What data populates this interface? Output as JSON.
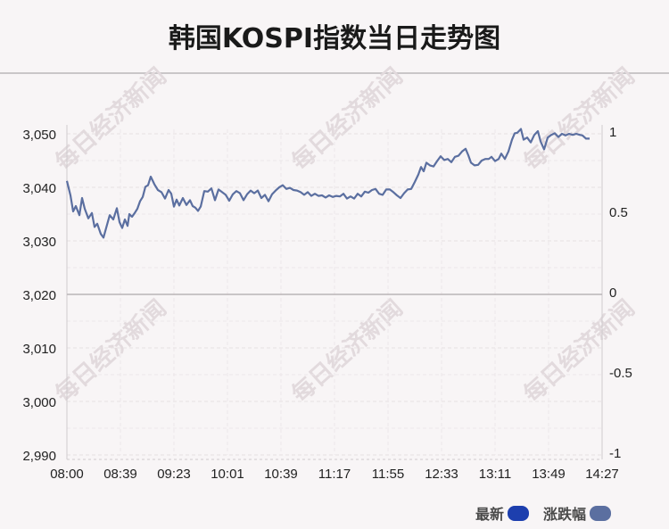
{
  "title": "韩国KOSPI指数当日走势图",
  "watermark_text": "每日经济新闻",
  "legend": {
    "latest_label": "最新",
    "latest_color": "#1d3fae",
    "change_label": "涨跌幅",
    "change_color": "#5b6fa0"
  },
  "chart_data": {
    "type": "line",
    "title": "韩国KOSPI指数当日走势图",
    "x_tick_labels": [
      "08:00",
      "08:39",
      "09:23",
      "10:01",
      "10:39",
      "11:17",
      "11:55",
      "12:33",
      "13:11",
      "13:49",
      "14:27"
    ],
    "y_left_ticks": [
      "3,050",
      "3,040",
      "3,030",
      "3,020",
      "3,010",
      "3,000",
      "2,990"
    ],
    "y_left_range": [
      2990,
      3050
    ],
    "y_right_ticks": [
      "1",
      "0.5",
      "0",
      "-0.5",
      "-1"
    ],
    "y_right_range": [
      -1,
      1
    ],
    "baseline": 3020,
    "grid": true,
    "line_color": "#5b6fa0",
    "series": [
      {
        "name": "最新",
        "points": [
          [
            0,
            3041.2
          ],
          [
            0.2,
            3038.5
          ],
          [
            0.35,
            3035.5
          ],
          [
            0.5,
            3036.5
          ],
          [
            0.7,
            3034.8
          ],
          [
            0.85,
            3038.0
          ],
          [
            1.0,
            3036.0
          ],
          [
            1.2,
            3034.2
          ],
          [
            1.4,
            3035.2
          ],
          [
            1.55,
            3032.6
          ],
          [
            1.7,
            3033.2
          ],
          [
            1.9,
            3031.3
          ],
          [
            2.05,
            3030.6
          ],
          [
            2.2,
            3032.4
          ],
          [
            2.4,
            3034.8
          ],
          [
            2.6,
            3034.0
          ],
          [
            2.8,
            3036.1
          ],
          [
            2.95,
            3033.5
          ],
          [
            3.1,
            3032.4
          ],
          [
            3.25,
            3034.0
          ],
          [
            3.4,
            3032.8
          ],
          [
            3.5,
            3035.0
          ],
          [
            3.65,
            3034.5
          ],
          [
            3.8,
            3035.2
          ],
          [
            3.95,
            3036.0
          ],
          [
            4.1,
            3037.4
          ],
          [
            4.25,
            3038.2
          ],
          [
            4.4,
            3040.1
          ],
          [
            4.55,
            3040.4
          ],
          [
            4.7,
            3042.0
          ],
          [
            4.9,
            3040.6
          ],
          [
            5.1,
            3039.5
          ],
          [
            5.3,
            3039.1
          ],
          [
            5.5,
            3037.9
          ],
          [
            5.7,
            3039.5
          ],
          [
            5.85,
            3038.8
          ],
          [
            6.0,
            3036.4
          ],
          [
            6.15,
            3037.7
          ],
          [
            6.3,
            3036.6
          ],
          [
            6.5,
            3038.0
          ],
          [
            6.7,
            3036.7
          ],
          [
            6.9,
            3037.6
          ],
          [
            7.05,
            3036.5
          ],
          [
            7.2,
            3036.2
          ],
          [
            7.35,
            3035.6
          ],
          [
            7.5,
            3036.4
          ],
          [
            7.7,
            3039.3
          ],
          [
            7.9,
            3039.2
          ],
          [
            8.1,
            3039.8
          ],
          [
            8.3,
            3037.6
          ],
          [
            8.5,
            3039.6
          ],
          [
            8.7,
            3039.1
          ],
          [
            8.9,
            3038.6
          ],
          [
            9.1,
            3037.5
          ],
          [
            9.3,
            3038.7
          ],
          [
            9.5,
            3039.3
          ],
          [
            9.7,
            3038.9
          ],
          [
            9.9,
            3037.6
          ],
          [
            10.1,
            3038.7
          ],
          [
            10.3,
            3039.4
          ],
          [
            10.5,
            3038.9
          ],
          [
            10.7,
            3039.4
          ],
          [
            10.9,
            3038.0
          ],
          [
            11.1,
            3038.6
          ],
          [
            11.3,
            3037.4
          ],
          [
            11.5,
            3038.7
          ],
          [
            11.7,
            3039.4
          ],
          [
            11.9,
            3040.0
          ],
          [
            12.1,
            3040.4
          ],
          [
            12.3,
            3039.7
          ],
          [
            12.5,
            3039.9
          ],
          [
            12.7,
            3039.5
          ],
          [
            12.9,
            3039.4
          ],
          [
            13.1,
            3039.1
          ],
          [
            13.3,
            3038.6
          ],
          [
            13.5,
            3039.1
          ],
          [
            13.7,
            3038.4
          ],
          [
            13.9,
            3038.8
          ],
          [
            14.1,
            3038.4
          ],
          [
            14.3,
            3038.5
          ],
          [
            14.5,
            3038.1
          ],
          [
            14.7,
            3038.5
          ],
          [
            14.9,
            3038.2
          ],
          [
            15.1,
            3038.4
          ],
          [
            15.3,
            3038.3
          ],
          [
            15.5,
            3038.8
          ],
          [
            15.7,
            3037.9
          ],
          [
            15.9,
            3038.3
          ],
          [
            16.1,
            3037.9
          ],
          [
            16.3,
            3038.8
          ],
          [
            16.5,
            3038.3
          ],
          [
            16.7,
            3039.2
          ],
          [
            16.9,
            3039.0
          ],
          [
            17.1,
            3039.5
          ],
          [
            17.3,
            3039.7
          ],
          [
            17.5,
            3038.8
          ],
          [
            17.7,
            3038.6
          ],
          [
            17.9,
            3039.6
          ],
          [
            18.1,
            3039.6
          ],
          [
            18.3,
            3039.1
          ],
          [
            18.5,
            3038.5
          ],
          [
            18.7,
            3038.0
          ],
          [
            18.9,
            3038.9
          ],
          [
            19.1,
            3039.6
          ],
          [
            19.3,
            3039.7
          ],
          [
            19.5,
            3041.0
          ],
          [
            19.7,
            3042.4
          ],
          [
            19.85,
            3043.8
          ],
          [
            20.0,
            3043.0
          ],
          [
            20.15,
            3044.6
          ],
          [
            20.35,
            3044.1
          ],
          [
            20.55,
            3043.9
          ],
          [
            20.75,
            3044.9
          ],
          [
            20.95,
            3045.8
          ],
          [
            21.15,
            3045.1
          ],
          [
            21.35,
            3045.3
          ],
          [
            21.55,
            3044.7
          ],
          [
            21.75,
            3045.7
          ],
          [
            21.95,
            3045.9
          ],
          [
            22.15,
            3046.7
          ],
          [
            22.35,
            3047.2
          ],
          [
            22.5,
            3046.0
          ],
          [
            22.65,
            3044.6
          ],
          [
            22.85,
            3044.1
          ],
          [
            23.05,
            3044.2
          ],
          [
            23.25,
            3045.0
          ],
          [
            23.45,
            3045.3
          ],
          [
            23.65,
            3045.3
          ],
          [
            23.8,
            3045.7
          ],
          [
            24.0,
            3044.9
          ],
          [
            24.2,
            3045.3
          ],
          [
            24.35,
            3046.3
          ],
          [
            24.55,
            3045.3
          ],
          [
            24.75,
            3046.7
          ],
          [
            24.95,
            3048.9
          ],
          [
            25.1,
            3050.1
          ],
          [
            25.25,
            3050.2
          ],
          [
            25.45,
            3050.9
          ],
          [
            25.6,
            3048.9
          ],
          [
            25.8,
            3049.3
          ],
          [
            26.0,
            3048.4
          ],
          [
            26.2,
            3049.8
          ],
          [
            26.4,
            3050.5
          ],
          [
            26.55,
            3048.6
          ],
          [
            26.75,
            3047.1
          ],
          [
            26.95,
            3049.3
          ],
          [
            27.15,
            3049.8
          ],
          [
            27.35,
            3050.1
          ],
          [
            27.55,
            3049.4
          ],
          [
            27.75,
            3050.0
          ],
          [
            27.95,
            3049.7
          ],
          [
            28.15,
            3050.0
          ],
          [
            28.35,
            3049.8
          ],
          [
            28.55,
            3050.0
          ],
          [
            28.75,
            3049.8
          ],
          [
            28.9,
            3049.7
          ],
          [
            29.1,
            3049.1
          ],
          [
            29.3,
            3049.1
          ]
        ]
      }
    ],
    "x_points_per_tick": 3,
    "x_total_points": 30
  }
}
